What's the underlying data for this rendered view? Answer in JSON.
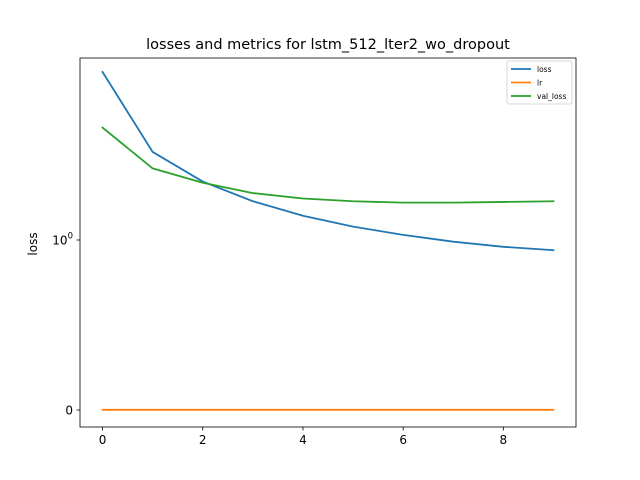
{
  "chart_data": {
    "type": "line",
    "title": "losses and metrics for lstm_512_lter2_wo_dropout",
    "xlabel": "",
    "ylabel": "loss",
    "yscale": "symlog",
    "xlim": [
      -0.45,
      9.45
    ],
    "x_ticks": [
      0,
      2,
      4,
      6,
      8
    ],
    "x_tick_labels": [
      "0",
      "2",
      "4",
      "6",
      "8"
    ],
    "y_ticks": [
      {
        "value": 0,
        "base": "0",
        "exp": ""
      },
      {
        "value": 1,
        "base": "10",
        "exp": "0"
      }
    ],
    "grid": false,
    "legend_position": "top-right",
    "x": [
      0,
      1,
      2,
      3,
      4,
      5,
      6,
      7,
      8,
      9
    ],
    "series": [
      {
        "name": "loss",
        "color": "#1f77b4",
        "values": [
          2.63,
          1.66,
          1.4,
          1.25,
          1.15,
          1.08,
          1.03,
          0.99,
          0.96,
          0.94
        ]
      },
      {
        "name": "lr",
        "color": "#ff7f0e",
        "values": [
          0.001,
          0.001,
          0.001,
          0.001,
          0.001,
          0.001,
          0.001,
          0.001,
          0.001,
          0.001
        ]
      },
      {
        "name": "val_loss",
        "color": "#2ca02c",
        "values": [
          1.91,
          1.51,
          1.39,
          1.31,
          1.27,
          1.25,
          1.24,
          1.24,
          1.245,
          1.25
        ]
      }
    ]
  }
}
